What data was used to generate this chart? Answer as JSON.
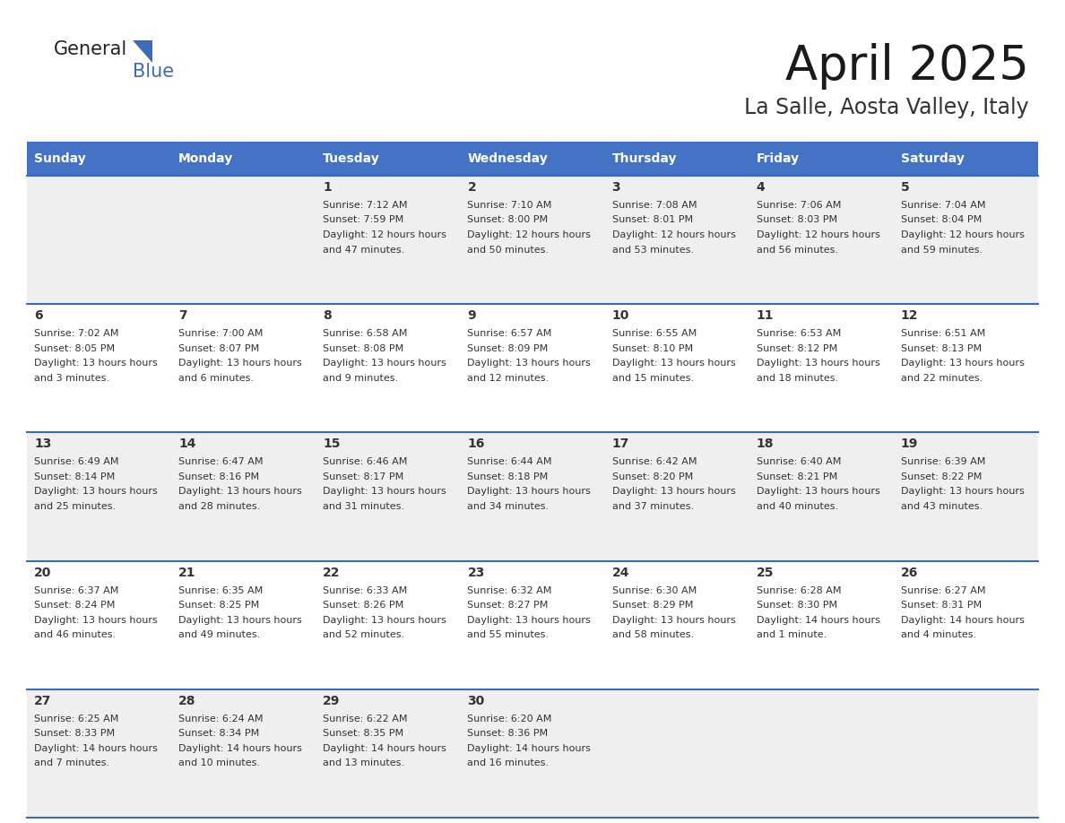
{
  "title": "April 2025",
  "subtitle": "La Salle, Aosta Valley, Italy",
  "header_bg": "#4472C4",
  "header_text": "#FFFFFF",
  "day_names": [
    "Sunday",
    "Monday",
    "Tuesday",
    "Wednesday",
    "Thursday",
    "Friday",
    "Saturday"
  ],
  "title_fontsize": 38,
  "subtitle_fontsize": 17,
  "cell_bg_light": "#EFEFEF",
  "cell_bg_white": "#FFFFFF",
  "divider_color": "#3A6DB5",
  "text_color": "#333333",
  "days": [
    {
      "date": 1,
      "col": 2,
      "row": 0,
      "sunrise": "7:12 AM",
      "sunset": "7:59 PM",
      "daylight": "12 hours and 47 minutes."
    },
    {
      "date": 2,
      "col": 3,
      "row": 0,
      "sunrise": "7:10 AM",
      "sunset": "8:00 PM",
      "daylight": "12 hours and 50 minutes."
    },
    {
      "date": 3,
      "col": 4,
      "row": 0,
      "sunrise": "7:08 AM",
      "sunset": "8:01 PM",
      "daylight": "12 hours and 53 minutes."
    },
    {
      "date": 4,
      "col": 5,
      "row": 0,
      "sunrise": "7:06 AM",
      "sunset": "8:03 PM",
      "daylight": "12 hours and 56 minutes."
    },
    {
      "date": 5,
      "col": 6,
      "row": 0,
      "sunrise": "7:04 AM",
      "sunset": "8:04 PM",
      "daylight": "12 hours and 59 minutes."
    },
    {
      "date": 6,
      "col": 0,
      "row": 1,
      "sunrise": "7:02 AM",
      "sunset": "8:05 PM",
      "daylight": "13 hours and 3 minutes."
    },
    {
      "date": 7,
      "col": 1,
      "row": 1,
      "sunrise": "7:00 AM",
      "sunset": "8:07 PM",
      "daylight": "13 hours and 6 minutes."
    },
    {
      "date": 8,
      "col": 2,
      "row": 1,
      "sunrise": "6:58 AM",
      "sunset": "8:08 PM",
      "daylight": "13 hours and 9 minutes."
    },
    {
      "date": 9,
      "col": 3,
      "row": 1,
      "sunrise": "6:57 AM",
      "sunset": "8:09 PM",
      "daylight": "13 hours and 12 minutes."
    },
    {
      "date": 10,
      "col": 4,
      "row": 1,
      "sunrise": "6:55 AM",
      "sunset": "8:10 PM",
      "daylight": "13 hours and 15 minutes."
    },
    {
      "date": 11,
      "col": 5,
      "row": 1,
      "sunrise": "6:53 AM",
      "sunset": "8:12 PM",
      "daylight": "13 hours and 18 minutes."
    },
    {
      "date": 12,
      "col": 6,
      "row": 1,
      "sunrise": "6:51 AM",
      "sunset": "8:13 PM",
      "daylight": "13 hours and 22 minutes."
    },
    {
      "date": 13,
      "col": 0,
      "row": 2,
      "sunrise": "6:49 AM",
      "sunset": "8:14 PM",
      "daylight": "13 hours and 25 minutes."
    },
    {
      "date": 14,
      "col": 1,
      "row": 2,
      "sunrise": "6:47 AM",
      "sunset": "8:16 PM",
      "daylight": "13 hours and 28 minutes."
    },
    {
      "date": 15,
      "col": 2,
      "row": 2,
      "sunrise": "6:46 AM",
      "sunset": "8:17 PM",
      "daylight": "13 hours and 31 minutes."
    },
    {
      "date": 16,
      "col": 3,
      "row": 2,
      "sunrise": "6:44 AM",
      "sunset": "8:18 PM",
      "daylight": "13 hours and 34 minutes."
    },
    {
      "date": 17,
      "col": 4,
      "row": 2,
      "sunrise": "6:42 AM",
      "sunset": "8:20 PM",
      "daylight": "13 hours and 37 minutes."
    },
    {
      "date": 18,
      "col": 5,
      "row": 2,
      "sunrise": "6:40 AM",
      "sunset": "8:21 PM",
      "daylight": "13 hours and 40 minutes."
    },
    {
      "date": 19,
      "col": 6,
      "row": 2,
      "sunrise": "6:39 AM",
      "sunset": "8:22 PM",
      "daylight": "13 hours and 43 minutes."
    },
    {
      "date": 20,
      "col": 0,
      "row": 3,
      "sunrise": "6:37 AM",
      "sunset": "8:24 PM",
      "daylight": "13 hours and 46 minutes."
    },
    {
      "date": 21,
      "col": 1,
      "row": 3,
      "sunrise": "6:35 AM",
      "sunset": "8:25 PM",
      "daylight": "13 hours and 49 minutes."
    },
    {
      "date": 22,
      "col": 2,
      "row": 3,
      "sunrise": "6:33 AM",
      "sunset": "8:26 PM",
      "daylight": "13 hours and 52 minutes."
    },
    {
      "date": 23,
      "col": 3,
      "row": 3,
      "sunrise": "6:32 AM",
      "sunset": "8:27 PM",
      "daylight": "13 hours and 55 minutes."
    },
    {
      "date": 24,
      "col": 4,
      "row": 3,
      "sunrise": "6:30 AM",
      "sunset": "8:29 PM",
      "daylight": "13 hours and 58 minutes."
    },
    {
      "date": 25,
      "col": 5,
      "row": 3,
      "sunrise": "6:28 AM",
      "sunset": "8:30 PM",
      "daylight": "14 hours and 1 minute."
    },
    {
      "date": 26,
      "col": 6,
      "row": 3,
      "sunrise": "6:27 AM",
      "sunset": "8:31 PM",
      "daylight": "14 hours and 4 minutes."
    },
    {
      "date": 27,
      "col": 0,
      "row": 4,
      "sunrise": "6:25 AM",
      "sunset": "8:33 PM",
      "daylight": "14 hours and 7 minutes."
    },
    {
      "date": 28,
      "col": 1,
      "row": 4,
      "sunrise": "6:24 AM",
      "sunset": "8:34 PM",
      "daylight": "14 hours and 10 minutes."
    },
    {
      "date": 29,
      "col": 2,
      "row": 4,
      "sunrise": "6:22 AM",
      "sunset": "8:35 PM",
      "daylight": "14 hours and 13 minutes."
    },
    {
      "date": 30,
      "col": 3,
      "row": 4,
      "sunrise": "6:20 AM",
      "sunset": "8:36 PM",
      "daylight": "14 hours and 16 minutes."
    }
  ]
}
